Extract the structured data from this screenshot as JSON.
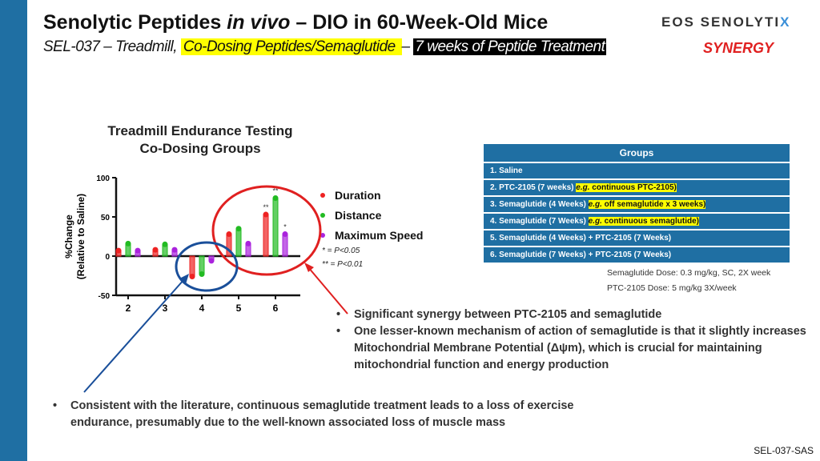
{
  "header": {
    "title_part1": "Senolytic Peptides ",
    "title_italic": "in vivo",
    "title_part2": " – DIO in 60-Week-Old Mice",
    "subtitle_part1": "SEL-037 – Treadmill, ",
    "subtitle_highlight": "Co-Dosing Peptides/Semaglutide ",
    "subtitle_dash": " – ",
    "subtitle_black": "7 weeks of Peptide Treatment",
    "logo_text": "EOS SENOLYTI",
    "logo_mark": "X",
    "tag": "SYNERGY"
  },
  "chart_data": {
    "type": "bar",
    "title_line1": "Treadmill Endurance Testing",
    "title_line2": "Co-Dosing Groups",
    "ylabel_line1": "%Change",
    "ylabel_line2": "(Relative to Saline)",
    "xlabel": "",
    "ylim": [
      -50,
      100
    ],
    "yticks": [
      "100",
      "50",
      "0",
      "-50"
    ],
    "categories": [
      "2",
      "3",
      "4",
      "5",
      "6"
    ],
    "series": [
      {
        "name": "Duration",
        "color": "#ee2222",
        "values": [
          7,
          8,
          -26,
          28,
          53
        ],
        "sig": [
          "",
          "",
          "",
          "",
          "**"
        ]
      },
      {
        "name": "Distance",
        "color": "#22bb22",
        "values": [
          16,
          15,
          -23,
          35,
          74
        ],
        "sig": [
          "",
          "",
          "",
          "",
          "**"
        ]
      },
      {
        "name": "Maximum Speed",
        "color": "#aa22dd",
        "values": [
          7,
          8,
          -6,
          16,
          28
        ],
        "sig": [
          "",
          "",
          "",
          "",
          "*"
        ]
      }
    ],
    "legend_position": "right",
    "footnote1": "*  = P<0.05",
    "footnote2": "** = P<0.01"
  },
  "groups": {
    "header": "Groups",
    "rows": [
      {
        "text": "1. Saline",
        "note_em": "",
        "note": ""
      },
      {
        "text": "2. PTC-2105 (7 weeks) ",
        "note_em": "e.g.",
        "note": " continuous PTC-2105)"
      },
      {
        "text": "3. Semaglutide (4 Weeks) ",
        "note_em": "e.g.",
        "note": " off semaglutide x 3 weeks)"
      },
      {
        "text": "4. Semaglutide (7 Weeks) ",
        "note_em": "e.g.",
        "note": " continuous semaglutide)"
      },
      {
        "text": "5. Semaglutide (4 Weeks)  + PTC-2105 (7 Weeks)",
        "note_em": "",
        "note": ""
      },
      {
        "text": "6. Semaglutide (7 Weeks)  + PTC-2105 (7 Weeks)",
        "note_em": "",
        "note": ""
      }
    ],
    "dose1": "Semaglutide Dose: 0.3 mg/kg, SC, 2X week",
    "dose2": "PTC-2105 Dose:  5 mg/kg 3X/week"
  },
  "bullets_right": [
    "Significant synergy between PTC-2105 and semaglutide",
    "One lesser-known mechanism of action of semaglutide is that it slightly increases Mitochondrial Membrane Potential (Δψm), which is crucial for maintaining mitochondrial function and energy production"
  ],
  "bullets_bottom": [
    "Consistent with the literature, continuous semaglutide treatment leads to a loss of exercise endurance, presumably due to the well-known associated loss of muscle mass"
  ],
  "footer": "SEL-037-SAS"
}
